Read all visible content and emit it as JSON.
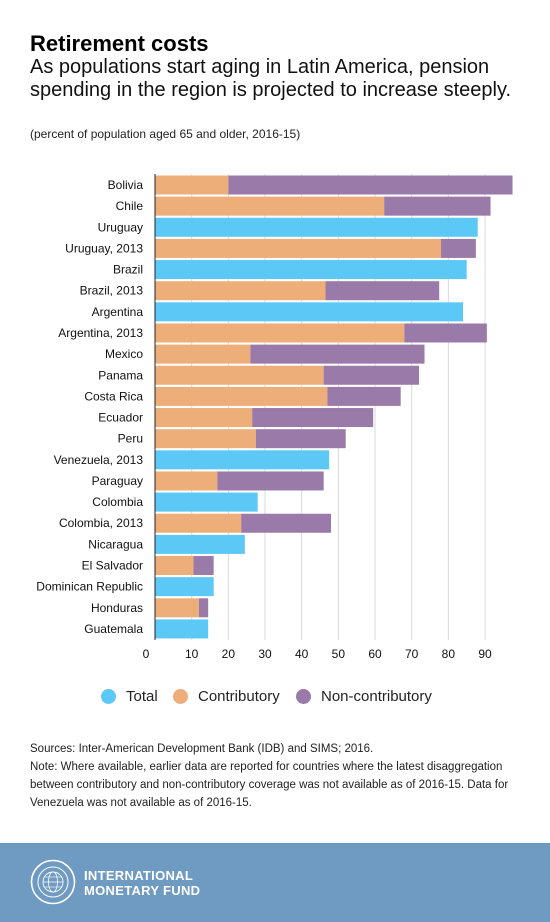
{
  "header": {
    "title": "Retirement costs",
    "subtitle": "As populations start aging in Latin America, pension spending in the region is projected to increase steeply.",
    "unit_note": "(percent of population aged 65 and older, 2016-15)"
  },
  "chart_data": {
    "type": "bar",
    "orientation": "horizontal",
    "stacked": true,
    "categories": [
      "Bolivia",
      "Chile",
      "Uruguay",
      "Uruguay, 2013",
      "Brazil",
      "Brazil, 2013",
      "Argentina",
      "Argentina, 2013",
      "Mexico",
      "Panama",
      "Costa Rica",
      "Ecuador",
      "Peru",
      "Venezuela, 2013",
      "Paraguay",
      "Colombia",
      "Colombia, 2013",
      "Nicaragua",
      "El Salvador",
      "Dominican Republic",
      "Honduras",
      "Guatemala"
    ],
    "series": [
      {
        "name": "Total",
        "color": "#5bc8f5",
        "values": [
          null,
          null,
          88,
          null,
          85,
          null,
          84,
          null,
          null,
          null,
          null,
          null,
          null,
          47.5,
          null,
          28,
          null,
          24.5,
          null,
          16,
          null,
          14.5
        ]
      },
      {
        "name": "Contributory",
        "color": "#eeae7a",
        "values": [
          20,
          62.5,
          null,
          78,
          null,
          46.5,
          null,
          68,
          26,
          46,
          47,
          26.5,
          27.5,
          null,
          17,
          null,
          23.5,
          null,
          10.5,
          null,
          12,
          null
        ]
      },
      {
        "name": "Non-contributory",
        "color": "#9a7aa8",
        "values": [
          77.5,
          29,
          null,
          9.5,
          null,
          31,
          null,
          22.5,
          47.5,
          26,
          20,
          33,
          24.5,
          null,
          29,
          null,
          24.5,
          null,
          5.5,
          null,
          2.5,
          null
        ]
      }
    ],
    "xlim": [
      0,
      97.5
    ],
    "xticks": [
      0,
      10,
      20,
      30,
      40,
      50,
      60,
      70,
      80,
      90
    ],
    "grid": true,
    "legend_position": "bottom"
  },
  "legend": [
    {
      "label": "Total",
      "color": "#5bc8f5"
    },
    {
      "label": "Contributory",
      "color": "#eeae7a"
    },
    {
      "label": "Non-contributory",
      "color": "#9a7aa8"
    }
  ],
  "sources": {
    "source_line": "Sources: Inter-American Development Bank (IDB) and SIMS; 2016.",
    "note_line": "Note: Where available, earlier data are reported for countries where the latest disaggregation between contributory and non-contributory coverage was not available as of 2016-15. Data for Venezuela was not available as of 2016-15."
  },
  "footer": {
    "org_line1": "INTERNATIONAL",
    "org_line2": "MONETARY FUND",
    "seal_icon": "imf-seal-icon",
    "background": "#6f9ac2"
  }
}
